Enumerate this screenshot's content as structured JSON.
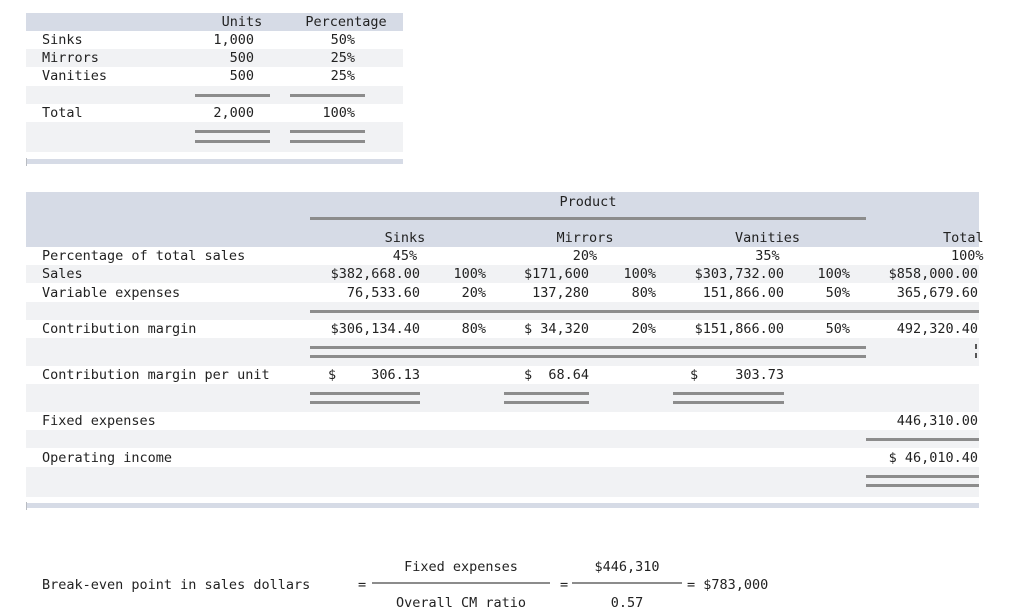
{
  "units_table": {
    "headers": {
      "units": "Units",
      "percentage": "Percentage"
    },
    "rows": [
      {
        "label": "Sinks",
        "units": "1,000",
        "percentage": "50%"
      },
      {
        "label": "Mirrors",
        "units": "500",
        "percentage": "25%"
      },
      {
        "label": "Vanities",
        "units": "500",
        "percentage": "25%"
      }
    ],
    "total": {
      "label": "Total",
      "units": "2,000",
      "percentage": "100%"
    }
  },
  "income_table": {
    "product_header": "Product",
    "columns": {
      "sinks": "Sinks",
      "mirrors": "Mirrors",
      "vanities": "Vanities",
      "total": "Total"
    },
    "pct_total_sales": {
      "label": "Percentage of total sales",
      "sinks": "45%",
      "mirrors": "20%",
      "vanities": "35%",
      "total": "100%"
    },
    "sales": {
      "label": "Sales",
      "sinks": "$382,668.00",
      "sinks_pct": "100%",
      "mirrors": "$171,600",
      "mirrors_pct": "100%",
      "vanities": "$303,732.00",
      "vanities_pct": "100%",
      "total": "$858,000.00"
    },
    "variable_expenses": {
      "label": "Variable expenses",
      "sinks": "76,533.60",
      "sinks_pct": "20%",
      "mirrors": "137,280",
      "mirrors_pct": "80%",
      "vanities": "151,866.00",
      "vanities_pct": "50%",
      "total": "365,679.60"
    },
    "contribution_margin": {
      "label": "Contribution margin",
      "sinks": "$306,134.40",
      "sinks_pct": "80%",
      "mirrors": "$ 34,320",
      "mirrors_pct": "20%",
      "vanities": "$151,866.00",
      "vanities_pct": "50%",
      "total": "492,320.40"
    },
    "cm_per_unit": {
      "label": "Contribution margin per unit",
      "sinks_sign": "$",
      "sinks": "306.13",
      "mirrors": "$  68.64",
      "vanities_sign": "$",
      "vanities": "303.73"
    },
    "fixed_expenses": {
      "label": "Fixed expenses",
      "total": "446,310.00"
    },
    "operating_income": {
      "label": "Operating income",
      "total": "$ 46,010.40"
    }
  },
  "break_even": {
    "label": "Break-even point in sales dollars",
    "equals": "=",
    "numerator_text": "Fixed expenses",
    "denominator_text": "Overall CM ratio",
    "numerator_value": "$446,310",
    "denominator_value": "0.57",
    "result": "= $783,000"
  }
}
